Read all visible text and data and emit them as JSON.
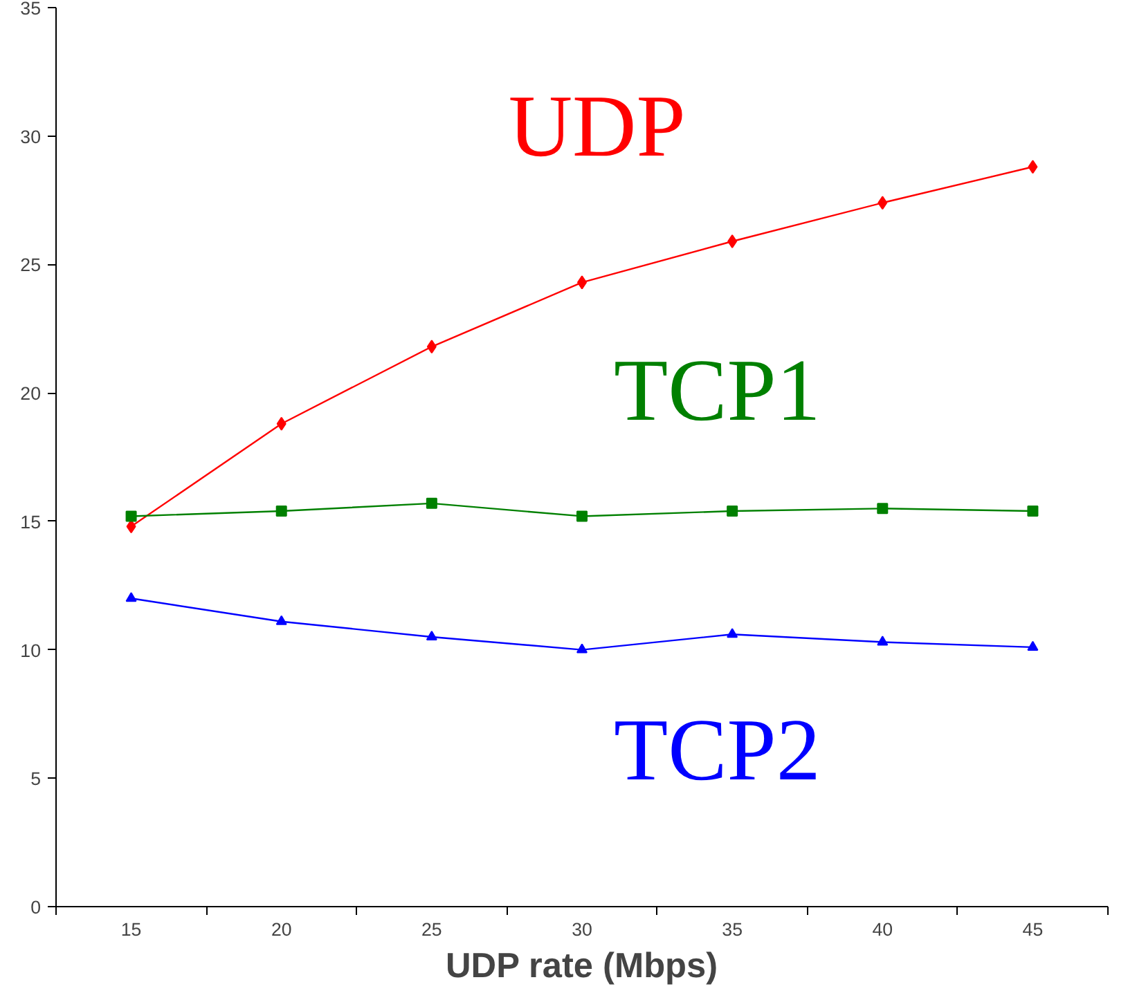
{
  "chart_data": {
    "type": "line",
    "xlabel": "UDP rate (Mbps)",
    "categories": [
      "15",
      "20",
      "25",
      "30",
      "35",
      "40",
      "45"
    ],
    "ylim": [
      0,
      35
    ],
    "yticks": [
      0,
      5,
      10,
      15,
      20,
      25,
      30,
      35
    ],
    "grid": false,
    "series": [
      {
        "name": "UDP",
        "color": "#ff0000",
        "marker": "diamond",
        "values": [
          14.8,
          18.8,
          21.8,
          24.3,
          25.9,
          27.4,
          28.8
        ]
      },
      {
        "name": "TCP1",
        "color": "#008000",
        "marker": "square",
        "values": [
          15.2,
          15.4,
          15.7,
          15.2,
          15.4,
          15.5,
          15.4
        ]
      },
      {
        "name": "TCP2",
        "color": "#0000ff",
        "marker": "triangle",
        "values": [
          12.0,
          11.1,
          10.5,
          10.0,
          10.6,
          10.3,
          10.1
        ]
      }
    ]
  }
}
